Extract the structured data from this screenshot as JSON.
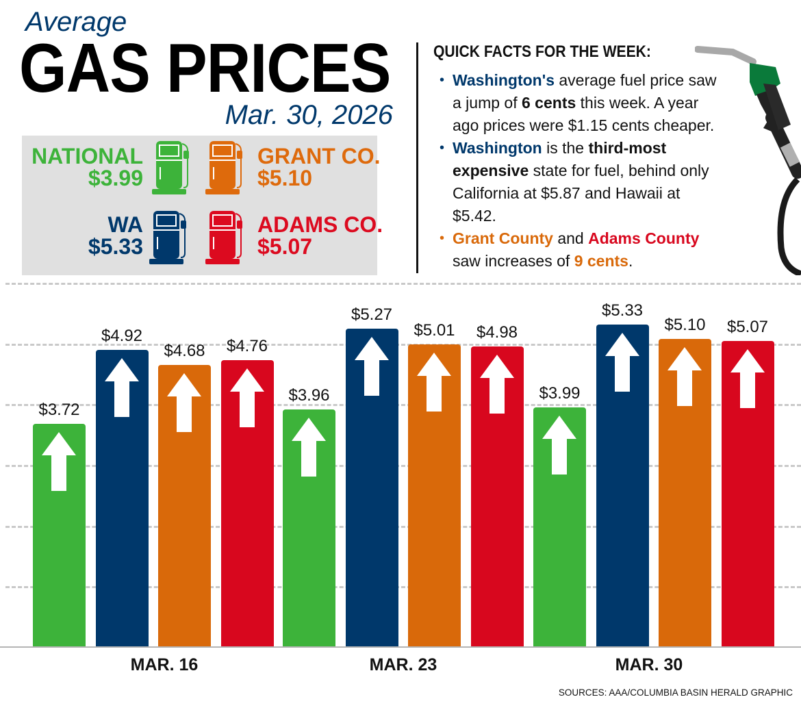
{
  "header": {
    "kicker": "Average",
    "title": "GAS PRICES",
    "date": "Mar. 30, 2026"
  },
  "price_box": [
    {
      "label": "NATIONAL",
      "price": "$3.99",
      "color": "#3db33a"
    },
    {
      "label": "GRANT CO.",
      "price": "$5.10",
      "color": "#de6a0c"
    },
    {
      "label": "WA",
      "price": "$5.33",
      "color": "#00386b"
    },
    {
      "label": "ADAMS CO.",
      "price": "$5.07",
      "color": "#dc0a1f"
    }
  ],
  "quick_facts": {
    "title": "QUICK FACTS FOR THE WEEK:",
    "lines": [
      {
        "bullet": true,
        "bullet_color": "navy",
        "segs": [
          {
            "t": "Washington's",
            "c": "navy",
            "b": true
          },
          {
            "t": " average fuel price saw"
          }
        ]
      },
      {
        "segs": [
          {
            "t": "a jump of "
          },
          {
            "t": "6 cents",
            "b": true
          },
          {
            "t": " this week. A year"
          }
        ]
      },
      {
        "segs": [
          {
            "t": "ago prices were $1.15 cents cheaper."
          }
        ]
      },
      {
        "bullet": true,
        "bullet_color": "navy",
        "segs": [
          {
            "t": "Washington",
            "c": "navy",
            "b": true
          },
          {
            "t": " is the "
          },
          {
            "t": "third-most",
            "b": true
          }
        ]
      },
      {
        "segs": [
          {
            "t": "expensive",
            "b": true
          },
          {
            "t": " state for fuel, behind only"
          }
        ]
      },
      {
        "segs": [
          {
            "t": "California at $5.87 and Hawaii at"
          }
        ]
      },
      {
        "segs": [
          {
            "t": "$5.42."
          }
        ]
      },
      {
        "bullet": true,
        "bullet_color": "orange",
        "segs": [
          {
            "t": "Grant County",
            "c": "orange",
            "b": true
          },
          {
            "t": " and "
          },
          {
            "t": "Adams County",
            "c": "red",
            "b": true
          }
        ]
      },
      {
        "segs": [
          {
            "t": "saw increases of "
          },
          {
            "t": "9 cents",
            "c": "orange",
            "b": true
          },
          {
            "t": "."
          }
        ]
      }
    ]
  },
  "colors": {
    "navy": "#00386b",
    "orange": "#d9690a",
    "red": "#d8071e",
    "green": "#3db33a"
  },
  "chart_data": {
    "type": "bar",
    "title": "Average Gas Prices",
    "xlabel": "",
    "ylabel": "",
    "categories": [
      "MAR. 16",
      "MAR. 23",
      "MAR. 30"
    ],
    "ylim": [
      0.1,
      5.9
    ],
    "grid": true,
    "series": [
      {
        "name": "National",
        "color": "#3db33a",
        "values": [
          3.72,
          3.96,
          3.99
        ],
        "labels": [
          "$3.72",
          "$3.96",
          "$3.99"
        ]
      },
      {
        "name": "WA",
        "color": "#00386b",
        "values": [
          4.92,
          5.27,
          5.33
        ],
        "labels": [
          "$4.92",
          "$5.27",
          "$5.33"
        ]
      },
      {
        "name": "Grant Co.",
        "color": "#d9690a",
        "values": [
          4.68,
          5.01,
          5.1
        ],
        "labels": [
          "$4.68",
          "$5.01",
          "$5.10"
        ]
      },
      {
        "name": "Adams Co.",
        "color": "#d8071e",
        "values": [
          4.76,
          4.98,
          5.07
        ],
        "labels": [
          "$4.76",
          "$4.98",
          "$5.07"
        ]
      }
    ]
  },
  "source": "SOURCES: AAA/COLUMBIA BASIN HERALD GRAPHIC"
}
